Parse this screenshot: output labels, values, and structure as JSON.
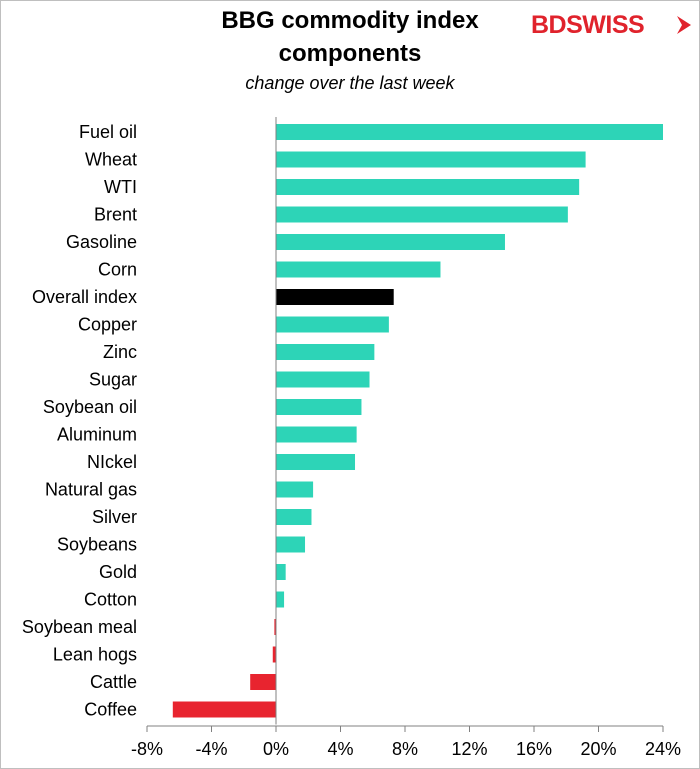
{
  "chart_data": {
    "type": "bar",
    "orientation": "horizontal",
    "title": "BBG commodity index components",
    "subtitle": "change over the last week",
    "xlabel": "",
    "ylabel": "",
    "xlim": [
      -8,
      24
    ],
    "tick_values": [
      -8,
      -4,
      0,
      4,
      8,
      12,
      16,
      20,
      24
    ],
    "tick_labels": [
      "-8%",
      "-4%",
      "0%",
      "4%",
      "8%",
      "12%",
      "16%",
      "20%",
      "24%"
    ],
    "categories": [
      "Fuel oil",
      "Wheat",
      "WTI",
      "Brent",
      "Gasoline",
      "Corn",
      "Overall index",
      "Copper",
      "Zinc",
      "Sugar",
      "Soybean oil",
      "Aluminum",
      "NIckel",
      "Natural gas",
      "Silver",
      "Soybeans",
      "Gold",
      "Cotton",
      "Soybean meal",
      "Lean hogs",
      "Cattle",
      "Coffee"
    ],
    "values": [
      24.0,
      19.2,
      18.8,
      18.1,
      14.2,
      10.2,
      7.3,
      7.0,
      6.1,
      5.8,
      5.3,
      5.0,
      4.9,
      2.3,
      2.2,
      1.8,
      0.6,
      0.5,
      -0.1,
      -0.2,
      -1.6,
      -6.4
    ],
    "highlight": "Overall index",
    "colors": {
      "positive": "#2dd4b7",
      "negative": "#e8242f",
      "highlight": "#000000"
    }
  },
  "logo": {
    "text_a": "BD",
    "text_b": "SWISS"
  }
}
